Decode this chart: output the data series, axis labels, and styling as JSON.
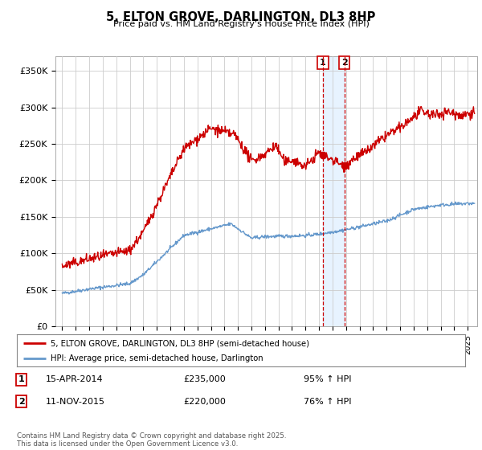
{
  "title": "5, ELTON GROVE, DARLINGTON, DL3 8HP",
  "subtitle": "Price paid vs. HM Land Registry's House Price Index (HPI)",
  "ylim": [
    0,
    370000
  ],
  "xlim_start": 1994.5,
  "xlim_end": 2025.7,
  "red_line_color": "#cc0000",
  "blue_line_color": "#6699cc",
  "vline_color": "#cc0000",
  "shade_color": "#ddeeff",
  "marker1_x": 2014.29,
  "marker2_x": 2015.87,
  "marker1_y": 235000,
  "marker2_y": 220000,
  "legend_red": "5, ELTON GROVE, DARLINGTON, DL3 8HP (semi-detached house)",
  "legend_blue": "HPI: Average price, semi-detached house, Darlington",
  "footer": "Contains HM Land Registry data © Crown copyright and database right 2025.\nThis data is licensed under the Open Government Licence v3.0.",
  "background_color": "#ffffff",
  "grid_color": "#cccccc"
}
